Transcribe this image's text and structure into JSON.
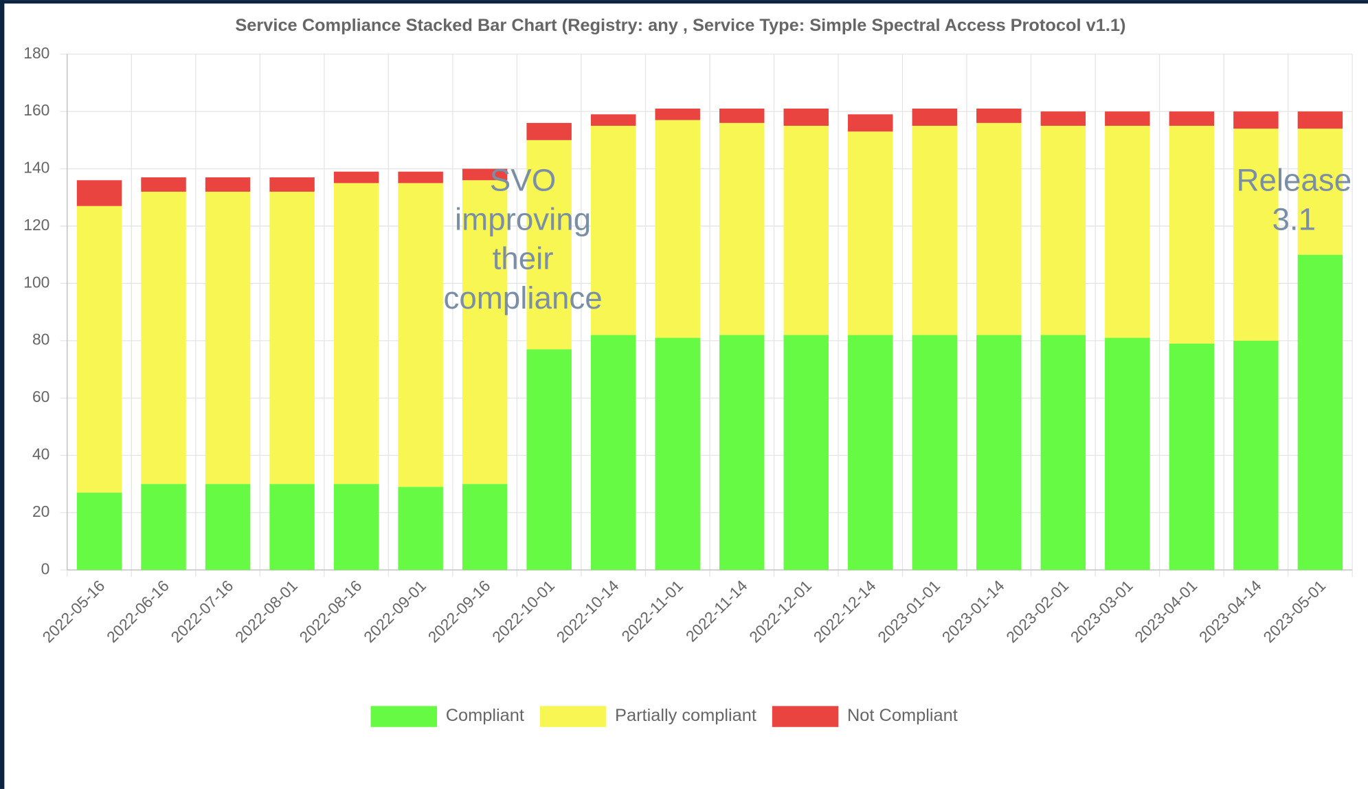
{
  "chart_data": {
    "type": "stacked_bar",
    "title": "Service Compliance Stacked Bar Chart (Registry: any , Service Type: Simple Spectral Access Protocol v1.1)",
    "categories": [
      "2022-05-16",
      "2022-06-16",
      "2022-07-16",
      "2022-08-01",
      "2022-08-16",
      "2022-09-01",
      "2022-09-16",
      "2022-10-01",
      "2022-10-14",
      "2022-11-01",
      "2022-11-14",
      "2022-12-01",
      "2022-12-14",
      "2023-01-01",
      "2023-01-14",
      "2023-02-01",
      "2023-03-01",
      "2023-04-01",
      "2023-04-14",
      "2023-05-01"
    ],
    "series": [
      {
        "name": "Compliant",
        "color": "#66fa44",
        "values": [
          27,
          30,
          30,
          30,
          30,
          29,
          30,
          77,
          82,
          81,
          82,
          82,
          82,
          82,
          82,
          82,
          81,
          79,
          80,
          110
        ]
      },
      {
        "name": "Partially compliant",
        "color": "#f8f652",
        "values": [
          100,
          102,
          102,
          102,
          105,
          106,
          106,
          73,
          73,
          76,
          74,
          73,
          71,
          73,
          74,
          73,
          74,
          76,
          74,
          44
        ]
      },
      {
        "name": "Not Compliant",
        "color": "#ea4440",
        "values": [
          9,
          5,
          5,
          5,
          4,
          4,
          4,
          6,
          4,
          4,
          5,
          6,
          6,
          6,
          5,
          5,
          5,
          5,
          6,
          6
        ]
      }
    ],
    "ylim": [
      0,
      180
    ],
    "yticks": [
      0,
      20,
      40,
      60,
      80,
      100,
      120,
      140,
      160,
      180
    ],
    "grid": true,
    "legend": "bottom",
    "annotations": [
      {
        "text": "SVO improving their compliance",
        "category": 7
      },
      {
        "text": "Release 3.1",
        "category": 19
      }
    ]
  }
}
